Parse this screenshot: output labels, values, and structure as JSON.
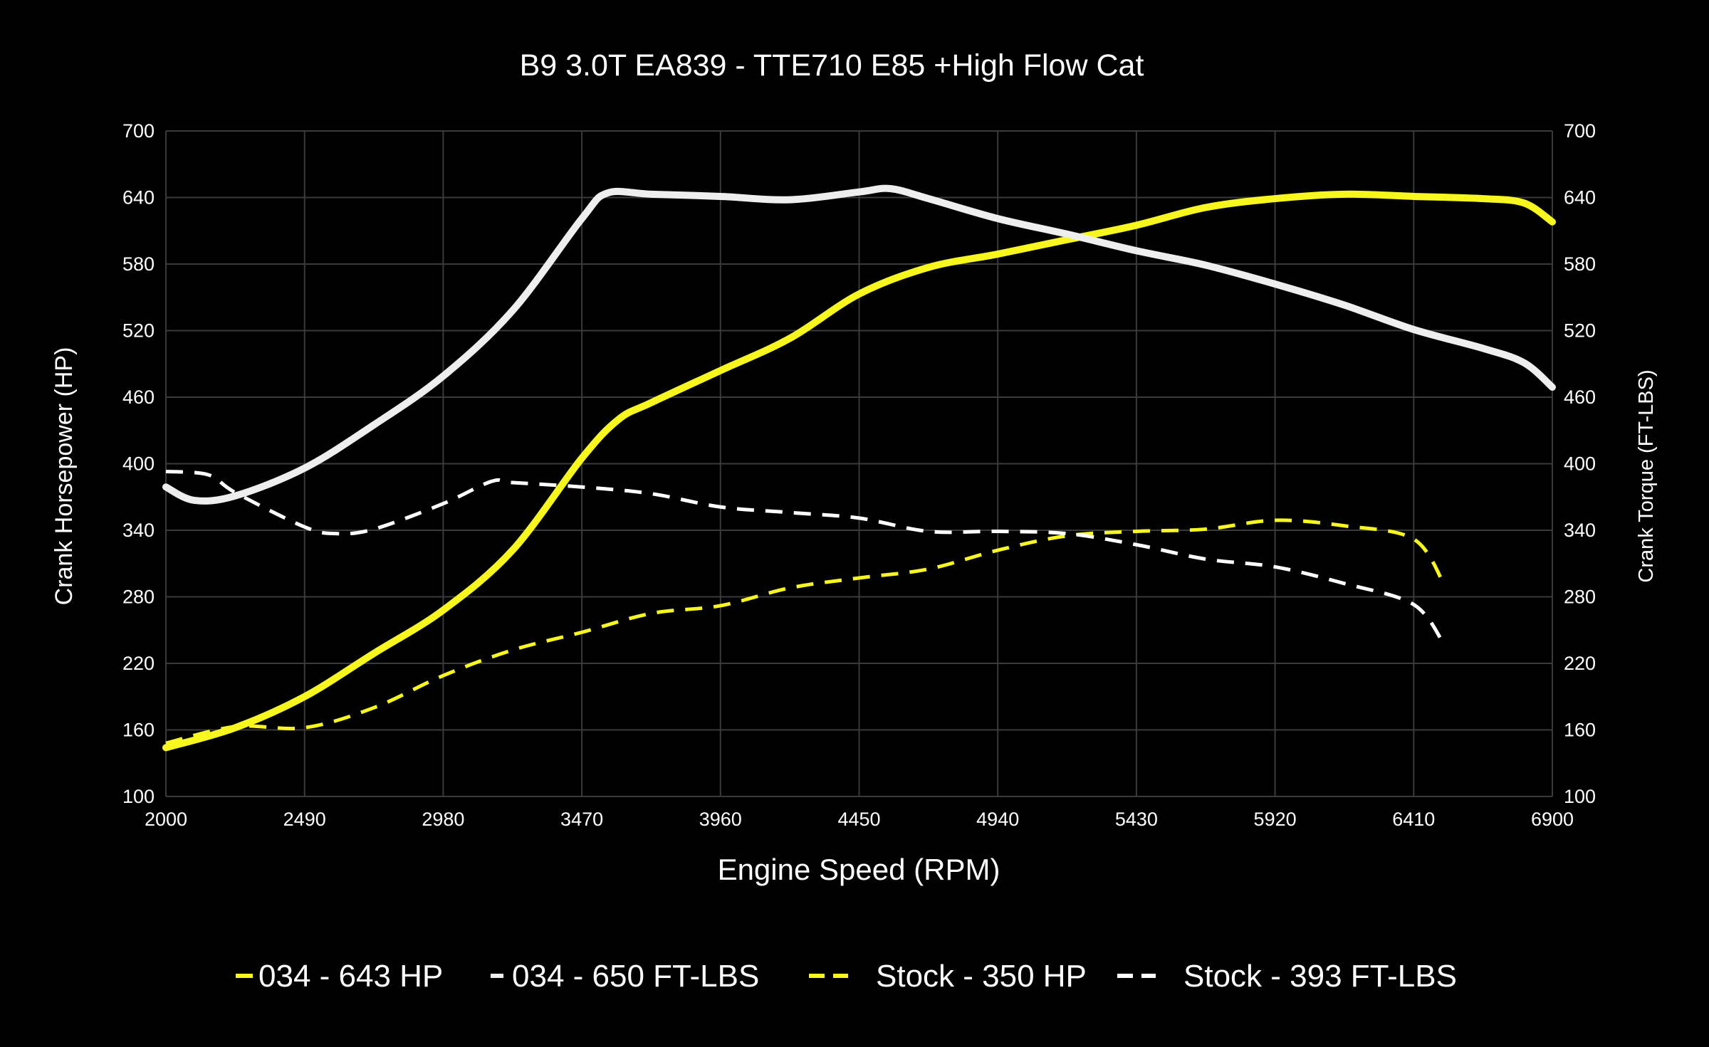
{
  "chart_data": {
    "type": "line",
    "title": "B9 3.0T EA839 - TTE710 E85 +High Flow Cat",
    "xlabel": "Engine Speed (RPM)",
    "ylabel": "Crank Horsepower (HP)",
    "y2label": "Crank Torque (FT-LBS)",
    "xlim": [
      2000,
      6900
    ],
    "ylim": [
      100,
      700
    ],
    "y2lim": [
      100,
      700
    ],
    "xticks": [
      "2000",
      "2490",
      "2980",
      "3470",
      "3960",
      "4450",
      "4940",
      "5430",
      "5920",
      "6410",
      "6900"
    ],
    "yticks": [
      "100",
      "160",
      "220",
      "280",
      "340",
      "400",
      "460",
      "520",
      "580",
      "640",
      "700"
    ],
    "grid": true,
    "legend_position": "bottom",
    "series": [
      {
        "name": "034 - 643 HP",
        "color": "#f7f71e",
        "dash": false,
        "x": [
          2000,
          2245,
          2490,
          2735,
          2980,
          3225,
          3470,
          3600,
          3715,
          3960,
          4205,
          4450,
          4695,
          4940,
          5185,
          5430,
          5675,
          5920,
          6165,
          6410,
          6655,
          6800,
          6900
        ],
        "y": [
          144,
          162,
          190,
          229,
          268,
          322,
          405,
          440,
          455,
          484,
          513,
          553,
          577,
          589,
          602,
          615,
          631,
          639,
          643,
          641,
          639,
          635,
          618
        ]
      },
      {
        "name": "034 - 650 FT-LBS",
        "color": "#eeeeee",
        "dash": false,
        "x": [
          2000,
          2100,
          2245,
          2490,
          2735,
          2980,
          3225,
          3470,
          3560,
          3715,
          3960,
          4205,
          4450,
          4560,
          4695,
          4940,
          5185,
          5430,
          5675,
          5920,
          6165,
          6410,
          6655,
          6800,
          6900
        ],
        "y": [
          379,
          367,
          371,
          396,
          435,
          479,
          538,
          621,
          644,
          643,
          641,
          638,
          645,
          648,
          639,
          621,
          607,
          592,
          579,
          562,
          543,
          521,
          504,
          491,
          469
        ]
      },
      {
        "name": "Stock - 350 HP",
        "color": "#f7f71e",
        "dash": true,
        "x": [
          2000,
          2245,
          2490,
          2735,
          2980,
          3225,
          3470,
          3715,
          3960,
          4205,
          4450,
          4695,
          4940,
          5185,
          5430,
          5675,
          5920,
          6165,
          6410,
          6520
        ],
        "y": [
          148,
          163,
          162,
          180,
          209,
          232,
          248,
          265,
          272,
          288,
          297,
          305,
          322,
          335,
          339,
          341,
          349,
          344,
          332,
          290
        ]
      },
      {
        "name": "Stock - 393 FT-LBS",
        "color": "#ffffff",
        "dash": true,
        "x": [
          2000,
          2150,
          2245,
          2490,
          2600,
          2735,
          2980,
          3150,
          3225,
          3470,
          3715,
          3960,
          4205,
          4450,
          4695,
          4940,
          5185,
          5430,
          5675,
          5920,
          6165,
          6410,
          6520
        ],
        "y": [
          393,
          390,
          374,
          343,
          337,
          341,
          364,
          384,
          383,
          379,
          373,
          361,
          356,
          351,
          339,
          339,
          337,
          327,
          314,
          307,
          292,
          273,
          236
        ]
      }
    ]
  }
}
